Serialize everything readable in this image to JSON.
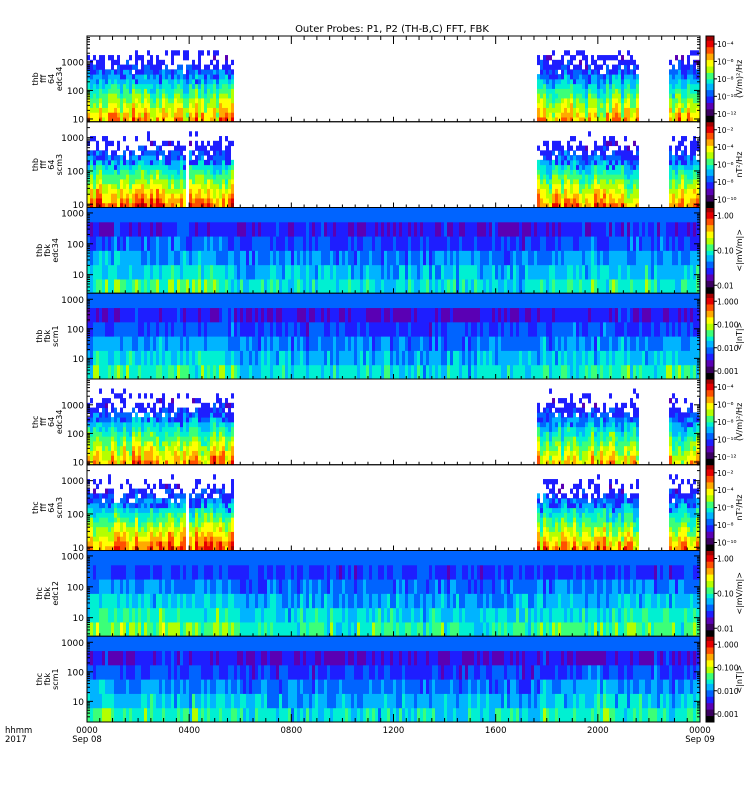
{
  "chart_data": {
    "type": "heatmap",
    "title": "Outer Probes: P1, P2 (TH-B,C) FFT, FBK",
    "time_axis": {
      "label_lines": [
        "hhmm",
        "2017"
      ],
      "ticks": [
        {
          "hour": 0,
          "label": "0000",
          "sublabel": "Sep 08"
        },
        {
          "hour": 4,
          "label": "0400",
          "sublabel": ""
        },
        {
          "hour": 8,
          "label": "0800",
          "sublabel": ""
        },
        {
          "hour": 12,
          "label": "1200",
          "sublabel": ""
        },
        {
          "hour": 16,
          "label": "1600",
          "sublabel": ""
        },
        {
          "hour": 20,
          "label": "2000",
          "sublabel": ""
        },
        {
          "hour": 24,
          "label": "0000",
          "sublabel": "Sep 09"
        }
      ],
      "range_hours": [
        0,
        24
      ]
    },
    "panels": [
      {
        "ylabel_lines": [
          "thb",
          "fff",
          "64",
          "edc34"
        ],
        "kind": "fff",
        "yticks": [
          "10",
          "100",
          "1000"
        ],
        "ylog": [
          8,
          8000
        ],
        "coverage_hours": [
          [
            0,
            5.7
          ],
          [
            17.6,
            21.6
          ],
          [
            22.7,
            24
          ]
        ],
        "dropouts_hours": [],
        "colorbar": {
          "unit": "(V/m)²/Hz",
          "labels": [
            "10⁻⁴",
            "10⁻⁶",
            "10⁻⁸",
            "10⁻¹⁰",
            "10⁻¹²"
          ],
          "low": 0.0,
          "high": 0.45,
          "noise_floor": 0.04
        }
      },
      {
        "ylabel_lines": [
          "thb",
          "fff",
          "64",
          "scm3"
        ],
        "kind": "fff",
        "yticks": [
          "10",
          "100",
          "1000"
        ],
        "ylog": [
          8,
          3000
        ],
        "coverage_hours": [
          [
            0,
            5.7
          ],
          [
            17.6,
            21.6
          ],
          [
            22.7,
            24
          ]
        ],
        "dropouts_hours": [
          [
            3.85,
            3.95
          ]
        ],
        "colorbar": {
          "unit": "nT²/Hz",
          "labels": [
            "10⁻²",
            "10⁻⁴",
            "10⁻⁶",
            "10⁻⁸",
            "10⁻¹⁰"
          ],
          "low": 0.0,
          "high": 0.5,
          "noise_floor": 0.04
        }
      },
      {
        "ylabel_lines": [
          "thb",
          "fbk",
          "edc34"
        ],
        "kind": "fbk",
        "yticks": [
          "10",
          "100",
          "1000"
        ],
        "ylog": [
          2.5,
          1500
        ],
        "coverage_hours": [
          [
            0,
            24
          ]
        ],
        "dropouts_hours": [],
        "colorbar": {
          "unit": "<|mV/m|>",
          "labels": [
            "1.00",
            "0.10",
            "0.01"
          ],
          "low": 0.12,
          "high": 0.55,
          "noise_floor": 0.0
        }
      },
      {
        "ylabel_lines": [
          "thb",
          "fbk",
          "scm1"
        ],
        "kind": "fbk",
        "yticks": [
          "10",
          "100",
          "1000"
        ],
        "ylog": [
          2,
          1600
        ],
        "coverage_hours": [
          [
            0,
            24
          ]
        ],
        "dropouts_hours": [],
        "colorbar": {
          "unit": "<|nT|>",
          "labels": [
            "1.000",
            "0.100",
            "0.010",
            "0.001"
          ],
          "low": 0.1,
          "high": 0.55,
          "noise_floor": 0.0
        }
      },
      {
        "ylabel_lines": [
          "thc",
          "fff",
          "64",
          "edc34"
        ],
        "kind": "fff",
        "yticks": [
          "10",
          "100",
          "1000"
        ],
        "ylog": [
          8,
          8000
        ],
        "coverage_hours": [
          [
            0,
            5.7
          ],
          [
            17.6,
            21.6
          ],
          [
            22.7,
            24
          ]
        ],
        "dropouts_hours": [],
        "colorbar": {
          "unit": "(V/m)²/Hz",
          "labels": [
            "10⁻⁴",
            "10⁻⁶",
            "10⁻⁸",
            "10⁻¹⁰",
            "10⁻¹²"
          ],
          "low": 0.0,
          "high": 0.45,
          "noise_floor": 0.04
        }
      },
      {
        "ylabel_lines": [
          "thc",
          "fff",
          "64",
          "scm3"
        ],
        "kind": "fff",
        "yticks": [
          "10",
          "100",
          "1000"
        ],
        "ylog": [
          8,
          3000
        ],
        "coverage_hours": [
          [
            0,
            5.7
          ],
          [
            17.6,
            21.6
          ],
          [
            22.7,
            24
          ]
        ],
        "dropouts_hours": [
          [
            3.85,
            3.95
          ]
        ],
        "colorbar": {
          "unit": "nT²/Hz",
          "labels": [
            "10⁻²",
            "10⁻⁴",
            "10⁻⁶",
            "10⁻⁸",
            "10⁻¹⁰"
          ],
          "low": 0.0,
          "high": 0.5,
          "noise_floor": 0.04
        }
      },
      {
        "ylabel_lines": [
          "thc",
          "fbk",
          "edc12"
        ],
        "kind": "fbk",
        "yticks": [
          "10",
          "100",
          "1000"
        ],
        "ylog": [
          2.5,
          1500
        ],
        "coverage_hours": [
          [
            0,
            24
          ]
        ],
        "dropouts_hours": [],
        "colorbar": {
          "unit": "<|mV/m|>",
          "labels": [
            "1.00",
            "0.10",
            "0.01"
          ],
          "low": 0.15,
          "high": 0.6,
          "noise_floor": 0.0
        }
      },
      {
        "ylabel_lines": [
          "thc",
          "fbk",
          "scm1"
        ],
        "kind": "fbk",
        "yticks": [
          "10",
          "100",
          "1000"
        ],
        "ylog": [
          2,
          1600
        ],
        "coverage_hours": [
          [
            0,
            24
          ]
        ],
        "dropouts_hours": [],
        "colorbar": {
          "unit": "<|nT|>",
          "labels": [
            "1.000",
            "0.100",
            "0.010",
            "0.001"
          ],
          "low": 0.1,
          "high": 0.55,
          "noise_floor": 0.0
        }
      }
    ],
    "colormap": [
      "#000000",
      "#3b0060",
      "#5a00b4",
      "#1e1eff",
      "#0064ff",
      "#00b4ff",
      "#00f0d2",
      "#3cff78",
      "#b4ff00",
      "#ffff00",
      "#ffaa00",
      "#ff5000",
      "#e60000",
      "#a00000"
    ]
  }
}
